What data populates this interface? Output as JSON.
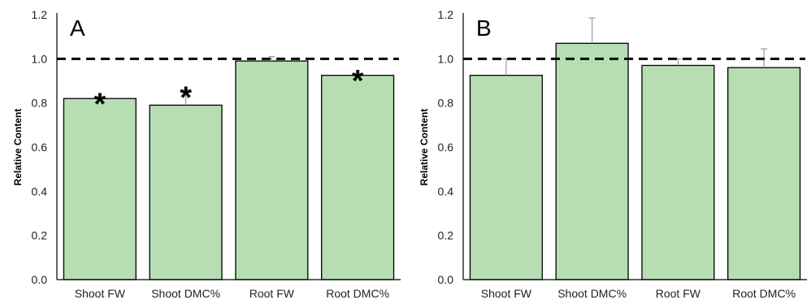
{
  "chart_data": [
    {
      "type": "bar",
      "panel_label": "A",
      "categories": [
        "Shoot FW",
        "Shoot DMC%",
        "Root FW",
        "Root DMC%"
      ],
      "values": [
        0.82,
        0.79,
        0.99,
        0.925
      ],
      "error_upper": [
        0.83,
        0.86,
        1.01,
        0.935
      ],
      "significant": [
        true,
        true,
        false,
        true
      ],
      "significance_marker": "*",
      "reference_line": 1.0,
      "ylabel": "Relative Content",
      "ylim": [
        0,
        1.2
      ],
      "yticks": [
        "0.0",
        "0.2",
        "0.4",
        "0.6",
        "0.8",
        "1.0",
        "1.2"
      ],
      "bar_color": "#b7deb3",
      "grid": false
    },
    {
      "type": "bar",
      "panel_label": "B",
      "categories": [
        "Shoot FW",
        "Shoot DMC%",
        "Root FW",
        "Root DMC%"
      ],
      "values": [
        0.925,
        1.07,
        0.97,
        0.96
      ],
      "error_upper": [
        1.0,
        1.185,
        1.0,
        1.045
      ],
      "significant": [
        false,
        false,
        false,
        false
      ],
      "significance_marker": "*",
      "reference_line": 1.0,
      "ylabel": "Relative Content",
      "ylim": [
        0,
        1.2
      ],
      "yticks": [
        "0.0",
        "0.2",
        "0.4",
        "0.6",
        "0.8",
        "1.0",
        "1.2"
      ],
      "bar_color": "#b7deb3",
      "grid": false
    }
  ]
}
